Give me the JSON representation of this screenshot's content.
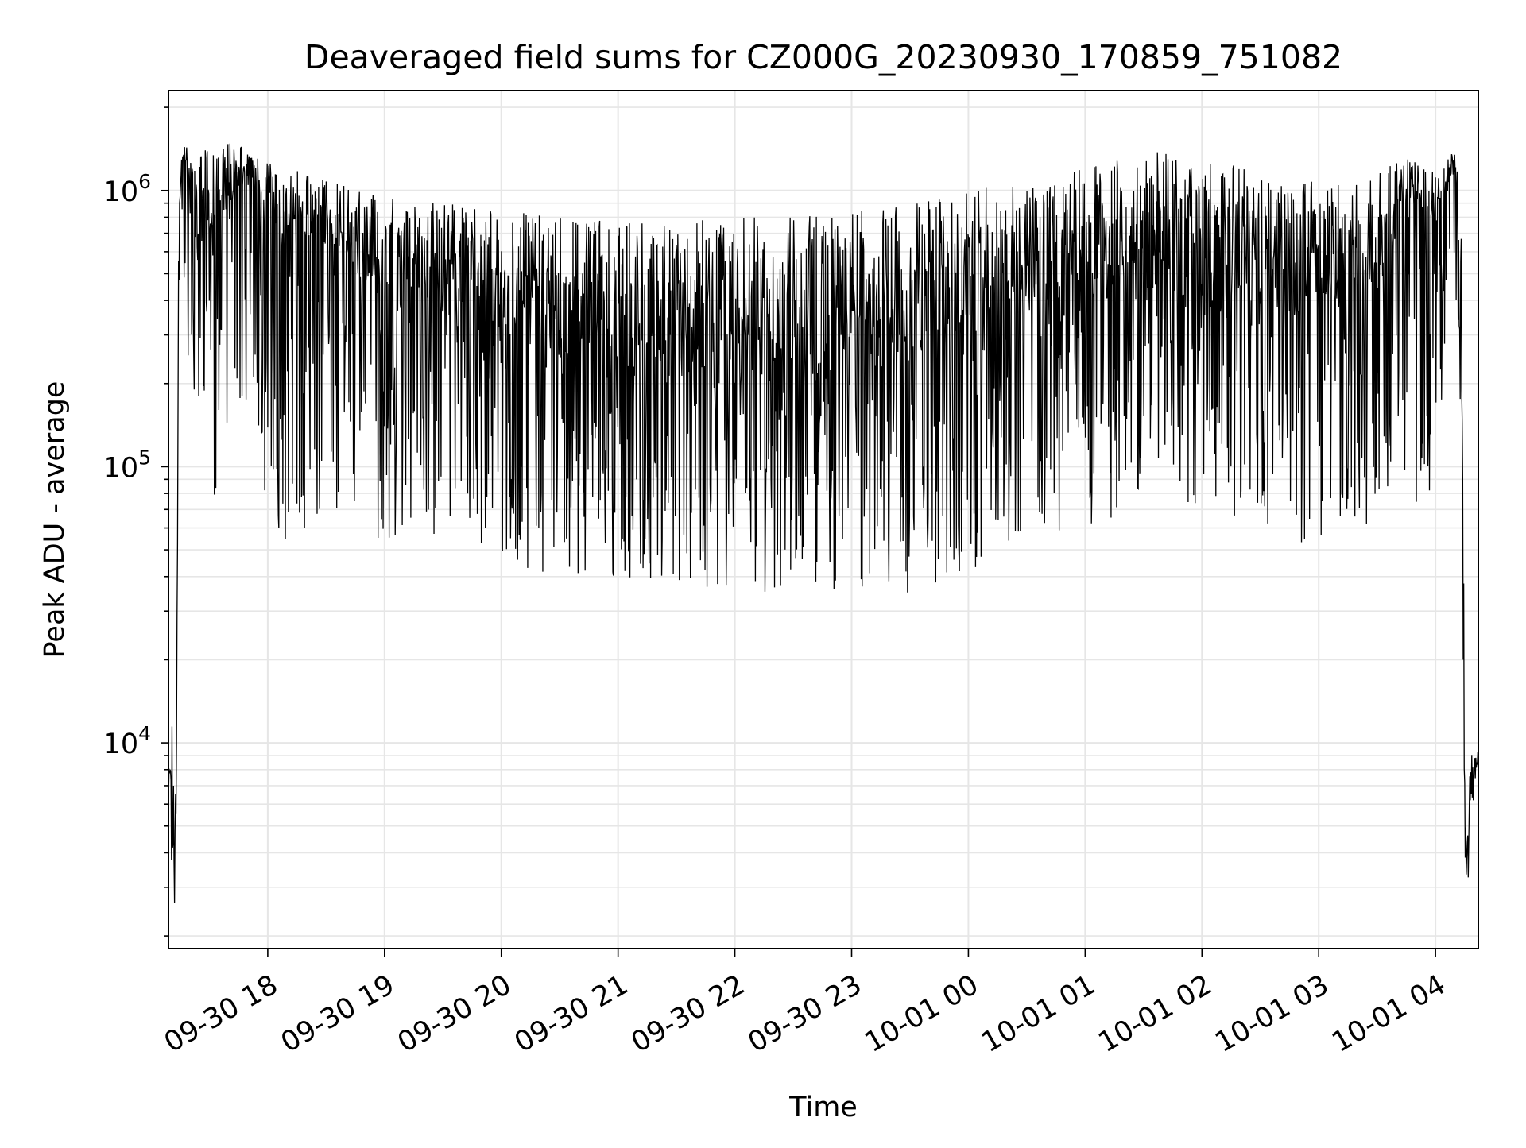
{
  "chart_data": {
    "type": "line",
    "title": "Deaveraged field sums for CZ000G_20230930_170859_751082",
    "xlabel": "Time",
    "ylabel": "Peak ADU - average",
    "yscale": "log",
    "ylim": [
      1800,
      2300000
    ],
    "xlim": [
      "2023-09-30 17:09",
      "2023-10-01 04:22"
    ],
    "x_tick_labels": [
      "09-30 18",
      "09-30 19",
      "09-30 20",
      "09-30 21",
      "09-30 22",
      "09-30 23",
      "10-01 00",
      "10-01 01",
      "10-01 02",
      "10-01 03",
      "10-01 04"
    ],
    "x_ticks": [
      "2023-09-30 18:00",
      "2023-09-30 19:00",
      "2023-09-30 20:00",
      "2023-09-30 21:00",
      "2023-09-30 22:00",
      "2023-09-30 23:00",
      "2023-10-01 00:00",
      "2023-10-01 01:00",
      "2023-10-01 02:00",
      "2023-10-01 03:00",
      "2023-10-01 04:00"
    ],
    "y_ticks": [
      10000,
      100000,
      1000000
    ],
    "y_tick_labels": [
      {
        "base": "10",
        "exp": "4"
      },
      {
        "base": "10",
        "exp": "5"
      },
      {
        "base": "10",
        "exp": "6"
      }
    ],
    "grid": true,
    "line_color": "#000000",
    "grid_color": "#e6e6e6",
    "series": [
      {
        "x": [
          "2023-09-30 17:09",
          "2023-09-30 17:10",
          "2023-09-30 17:11",
          "2023-09-30 17:12",
          "2023-09-30 17:13",
          "2023-09-30 17:14",
          "2023-09-30 17:15",
          "2023-09-30 17:17",
          "2023-09-30 17:20",
          "2023-09-30 17:25",
          "2023-09-30 17:30",
          "2023-09-30 17:40",
          "2023-09-30 17:50",
          "2023-09-30 18:00",
          "2023-09-30 18:15",
          "2023-09-30 18:30",
          "2023-09-30 18:45",
          "2023-09-30 19:00",
          "2023-09-30 19:30",
          "2023-09-30 20:00",
          "2023-09-30 20:30",
          "2023-09-30 21:00",
          "2023-09-30 21:30",
          "2023-09-30 22:00",
          "2023-09-30 22:30",
          "2023-09-30 23:00",
          "2023-09-30 23:30",
          "2023-10-01 00:00",
          "2023-10-01 00:30",
          "2023-10-01 01:00",
          "2023-10-01 01:30",
          "2023-10-01 02:00",
          "2023-10-01 02:30",
          "2023-10-01 03:00",
          "2023-10-01 03:30",
          "2023-10-01 03:45",
          "2023-10-01 04:00",
          "2023-10-01 04:05",
          "2023-10-01 04:10",
          "2023-10-01 04:12",
          "2023-10-01 04:14",
          "2023-10-01 04:15",
          "2023-10-01 04:16",
          "2023-10-01 04:18",
          "2023-10-01 04:20",
          "2023-10-01 04:22"
        ],
        "y": [
          7000,
          8000,
          4000,
          2500,
          5000,
          300000,
          1000000,
          1400000,
          800000,
          500000,
          700000,
          900000,
          1000000,
          800000,
          600000,
          700000,
          500000,
          400000,
          350000,
          300000,
          250000,
          200000,
          200000,
          180000,
          200000,
          220000,
          250000,
          300000,
          350000,
          400000,
          450000,
          400000,
          380000,
          350000,
          400000,
          900000,
          700000,
          1000000,
          1200000,
          600000,
          50000,
          5000,
          3000,
          6000,
          8000,
          9000
        ],
        "y_envelope_high": [
          8000,
          8000,
          14000,
          8000,
          6000,
          500000,
          1200000,
          1500000,
          1500000,
          1500000,
          1400000,
          1500000,
          1400000,
          1300000,
          1200000,
          1100000,
          1000000,
          950000,
          900000,
          850000,
          800000,
          800000,
          800000,
          800000,
          800000,
          850000,
          900000,
          1000000,
          1100000,
          1200000,
          1400000,
          1300000,
          1200000,
          1100000,
          1200000,
          1300000,
          1200000,
          1300000,
          1400000,
          1400000,
          600000,
          9000,
          6000,
          10000,
          9000,
          9500
        ],
        "y_envelope_low": [
          5500,
          6000,
          2500,
          2500,
          4000,
          200000,
          800000,
          400000,
          200000,
          100000,
          80000,
          70000,
          60000,
          60000,
          50000,
          50000,
          50000,
          55000,
          50000,
          45000,
          40000,
          40000,
          38000,
          35000,
          35000,
          35000,
          35000,
          40000,
          55000,
          60000,
          70000,
          70000,
          60000,
          50000,
          60000,
          55000,
          80000,
          200000,
          400000,
          300000,
          30000,
          3500,
          2500,
          4000,
          7000,
          8000
        ]
      }
    ]
  }
}
